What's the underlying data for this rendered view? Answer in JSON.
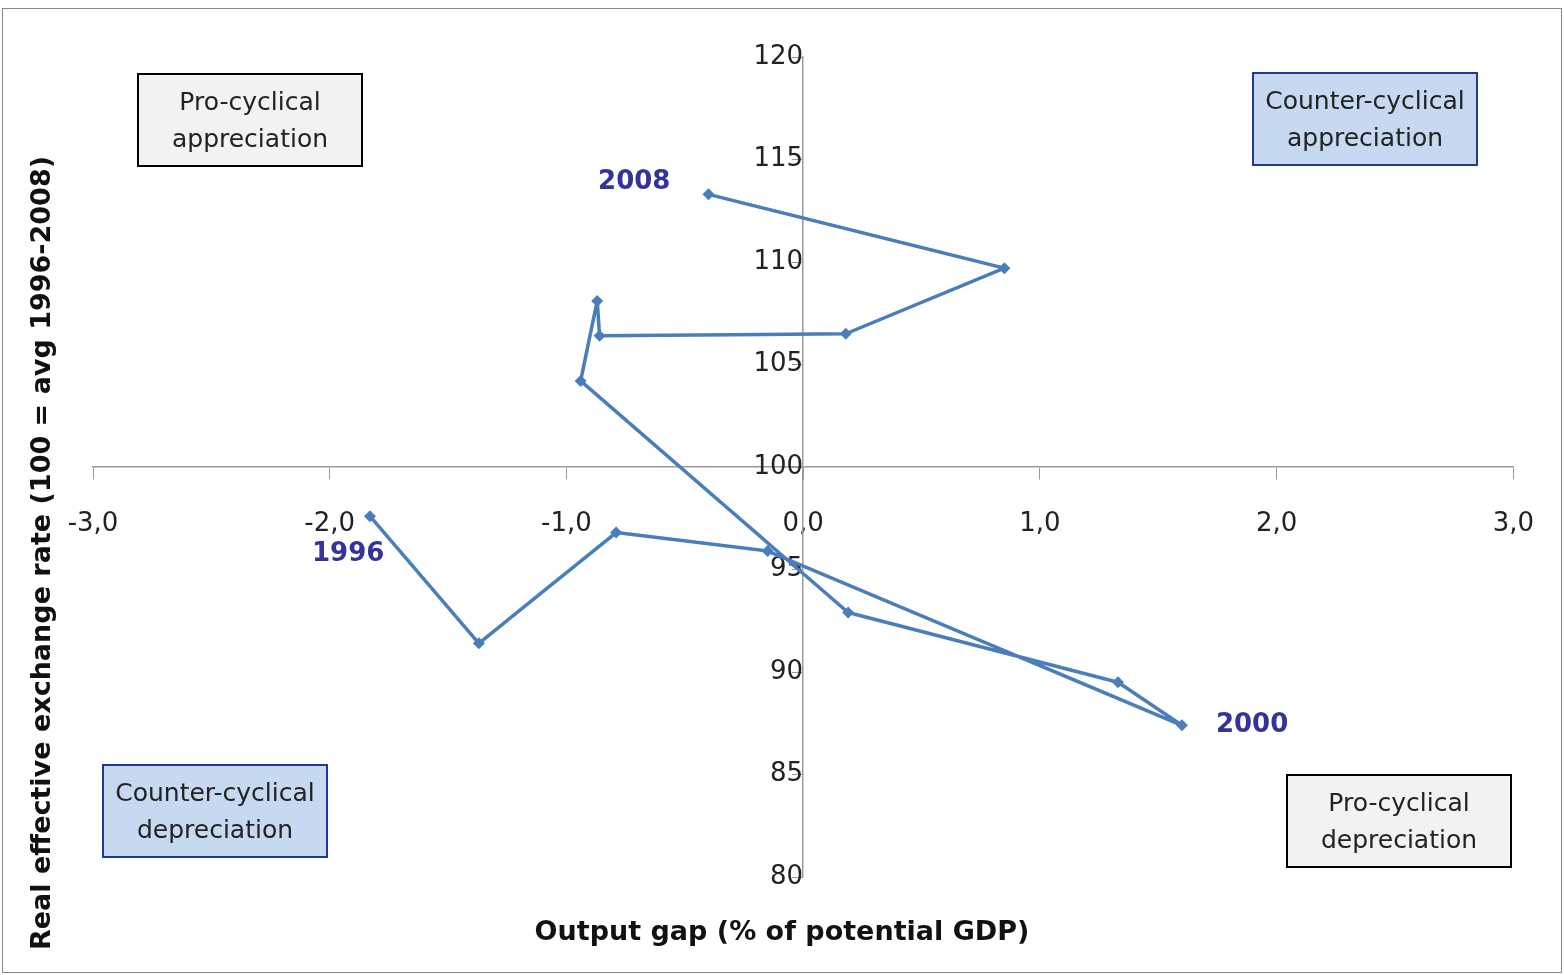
{
  "chart_data": {
    "type": "line",
    "xlabel": "Output gap (% of potential GDP)",
    "ylabel": "Real effective exchange rate (100 = avg 1996-2008)",
    "x": [
      -1.83,
      -1.37,
      -0.79,
      -0.15,
      1.6,
      1.33,
      0.19,
      -0.94,
      -0.87,
      -0.86,
      0.18,
      0.85,
      -0.4
    ],
    "series": [
      {
        "color": "#4a7ebb",
        "values": [
          97.6,
          91.4,
          96.8,
          95.9,
          87.4,
          89.5,
          92.9,
          104.2,
          108.1,
          106.4,
          106.5,
          109.7,
          113.3
        ]
      }
    ],
    "marker": "diamond",
    "line_style": "solid",
    "xlim": [
      -3,
      3
    ],
    "xticks": [
      {
        "value": -3,
        "label": "-3,0"
      },
      {
        "value": -2,
        "label": "-2,0"
      },
      {
        "value": -1,
        "label": "-1,0"
      },
      {
        "value": 0,
        "label": "0,0"
      },
      {
        "value": 1,
        "label": "1,0"
      },
      {
        "value": 2,
        "label": "2,0"
      },
      {
        "value": 3,
        "label": "3,0"
      }
    ],
    "ylim": [
      80,
      120
    ],
    "yticks": [
      80,
      85,
      90,
      95,
      100,
      105,
      110,
      115,
      120
    ],
    "annotations": [
      "Pro-cyclical appreciation",
      "Counter-cyclical appreciation",
      "Counter-cyclical depreciation",
      "Pro-cyclical depreciation",
      {
        "text": "1996",
        "x": -1.83,
        "y": 97.6
      },
      {
        "text": "2008",
        "x": -0.4,
        "y": 113.3
      },
      {
        "text": "2000",
        "x": 1.6,
        "y": 87.4
      }
    ]
  }
}
